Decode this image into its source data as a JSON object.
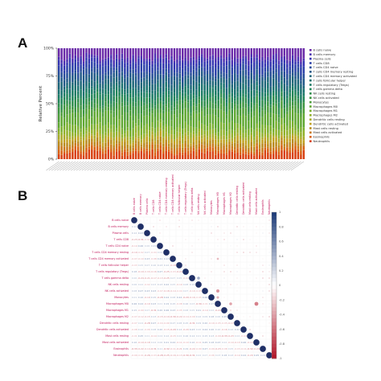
{
  "panels": {
    "a_label": "A",
    "b_label": "B"
  },
  "chart_data": [
    {
      "panel": "A",
      "type": "bar",
      "stacked": true,
      "ylabel": "Relative Percent",
      "yticks": [
        "0%",
        "25%",
        "50%",
        "75%",
        "100%"
      ],
      "ylim": [
        0,
        100
      ],
      "grid": false,
      "legend_position": "right",
      "n_samples": 90,
      "series_order_bottom_to_top": [
        "Neutrophils",
        "Eosinophils",
        "Mast cells activated",
        "Mast cells resting",
        "Dendritic cells activated",
        "Dendritic cells resting",
        "Macrophages M2",
        "Macrophages M1",
        "Macrophages M0",
        "Monocytes",
        "NK cells activated",
        "NK cells resting",
        "T cells gamma delta",
        "T cells regulatory (Tregs)",
        "T cells follicular helper",
        "T cells CD4 memory activated",
        "T cells CD4 memory resting",
        "T cells CD4 naive",
        "T cells CD8",
        "Plasma cells",
        "B cells memory",
        "B cells naive"
      ],
      "series_colors": [
        "#d84010",
        "#d86010",
        "#c87818",
        "#b88a1c",
        "#c0a020",
        "#a8aa28",
        "#90b028",
        "#78ae2c",
        "#5ea630",
        "#4c9c38",
        "#3c9440",
        "#2e8c4c",
        "#208458",
        "#1a7a64",
        "#18706e",
        "#1c6478",
        "#205888",
        "#264c98",
        "#2c40a8",
        "#3434b0",
        "#4a2eb0",
        "#6a2aa8"
      ],
      "mean_fractions": [
        0.06,
        0.03,
        0.03,
        0.03,
        0.03,
        0.03,
        0.04,
        0.05,
        0.09,
        0.05,
        0.04,
        0.04,
        0.04,
        0.04,
        0.04,
        0.05,
        0.05,
        0.04,
        0.05,
        0.04,
        0.03,
        0.08
      ],
      "sample_labels": []
    },
    {
      "panel": "B",
      "type": "heatmap",
      "style": "correlation lower triangle with coefficients, upper triangle circles",
      "variables": [
        "B cells naive",
        "B cells memory",
        "Plasma cells",
        "T cells CD8",
        "T cells CD4 naive",
        "T cells CD4 memory resting",
        "T cells CD4 memory activated",
        "T cells follicular helper",
        "T cells regulatory (Tregs)",
        "T cells gamma delta",
        "NK cells resting",
        "NK cells activated",
        "Monocytes",
        "Macrophages M0",
        "Macrophages M1",
        "Macrophages M2",
        "Dendritic cells resting",
        "Dendritic cells activated",
        "Mast cells resting",
        "Mast cells activated",
        "Eosinophils",
        "Neutrophils"
      ],
      "colorbar_ticks": [
        "1",
        "0.8",
        "0.6",
        "0.4",
        "0.2",
        "0",
        "-0.2",
        "-0.4",
        "-0.6",
        "-0.8",
        "-1"
      ],
      "color_scale": {
        "positive": "#1f3d7a",
        "zero": "#ffffff",
        "negative": "#b2182b"
      },
      "highlight_cells": [
        {
          "row": 11,
          "col": 13,
          "r": -0.45
        },
        {
          "row": 12,
          "col": 13,
          "r": -0.35
        },
        {
          "row": 13,
          "col": 15,
          "r": -0.4
        },
        {
          "row": 13,
          "col": 19,
          "r": -0.55
        },
        {
          "row": 9,
          "col": 10,
          "r": 0.4
        },
        {
          "row": 6,
          "col": 13,
          "r": -0.3
        }
      ]
    }
  ]
}
